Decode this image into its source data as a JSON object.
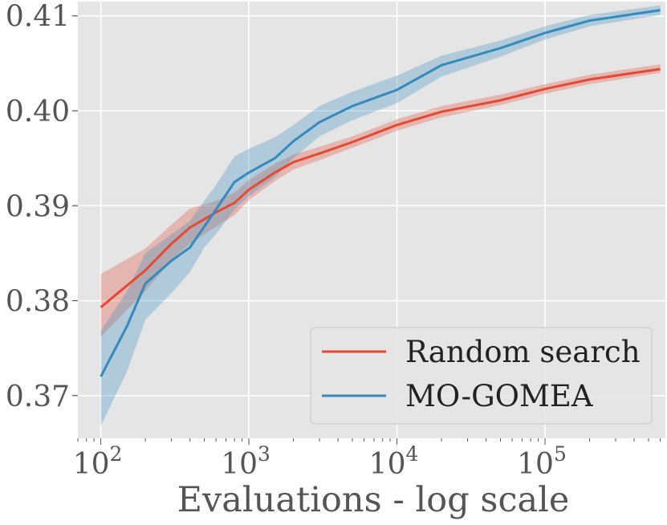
{
  "chart_data": {
    "type": "line",
    "title": "",
    "xlabel": "Evaluations - log scale",
    "ylabel": "",
    "x_scale": "log",
    "xlim": [
      70,
      650000
    ],
    "ylim": [
      0.3655,
      0.4115
    ],
    "grid": true,
    "background": "#e5e5e5",
    "grid_color": "#ffffff",
    "legend_position": "lower-right",
    "x_ticks": [
      {
        "value": 100,
        "base": "10",
        "exp": "2"
      },
      {
        "value": 1000,
        "base": "10",
        "exp": "3"
      },
      {
        "value": 10000,
        "base": "10",
        "exp": "4"
      },
      {
        "value": 100000,
        "base": "10",
        "exp": "5"
      }
    ],
    "y_ticks": [
      {
        "value": 0.37,
        "label": "0.37"
      },
      {
        "value": 0.38,
        "label": "0.38"
      },
      {
        "value": 0.39,
        "label": "0.39"
      },
      {
        "value": 0.4,
        "label": "0.40"
      },
      {
        "value": 0.41,
        "label": "0.41"
      }
    ],
    "series": [
      {
        "name": "Random search",
        "color": "#e24a33",
        "x": [
          100,
          200,
          300,
          400,
          600,
          800,
          1000,
          1500,
          2000,
          3000,
          5000,
          10000,
          20000,
          50000,
          100000,
          200000,
          600000
        ],
        "y": [
          0.3793,
          0.3832,
          0.386,
          0.3877,
          0.3893,
          0.3903,
          0.3917,
          0.3935,
          0.3946,
          0.3955,
          0.3967,
          0.3985,
          0.3999,
          0.4011,
          0.4023,
          0.4033,
          0.4044
        ],
        "lower": [
          0.3762,
          0.381,
          0.3843,
          0.386,
          0.3878,
          0.389,
          0.3906,
          0.3926,
          0.3938,
          0.3948,
          0.3961,
          0.3979,
          0.3993,
          0.4006,
          0.4018,
          0.4028,
          0.404
        ],
        "upper": [
          0.3828,
          0.3855,
          0.388,
          0.3897,
          0.3905,
          0.3914,
          0.3927,
          0.3944,
          0.3954,
          0.3962,
          0.3973,
          0.3991,
          0.4005,
          0.4017,
          0.4028,
          0.4038,
          0.4049
        ]
      },
      {
        "name": "MO-GOMEA",
        "color": "#348abd",
        "x": [
          100,
          150,
          200,
          300,
          400,
          500,
          600,
          800,
          1000,
          1500,
          2000,
          3000,
          5000,
          10000,
          20000,
          50000,
          100000,
          200000,
          600000
        ],
        "y": [
          0.372,
          0.3773,
          0.3818,
          0.3842,
          0.3856,
          0.3878,
          0.3896,
          0.3925,
          0.3935,
          0.395,
          0.3968,
          0.3988,
          0.4005,
          0.4022,
          0.4048,
          0.4066,
          0.4082,
          0.4095,
          0.4106
        ],
        "lower": [
          0.3668,
          0.3725,
          0.378,
          0.3808,
          0.383,
          0.3856,
          0.387,
          0.3896,
          0.391,
          0.393,
          0.395,
          0.3973,
          0.399,
          0.4008,
          0.4036,
          0.4057,
          0.4075,
          0.4089,
          0.4101
        ],
        "upper": [
          0.3768,
          0.381,
          0.385,
          0.387,
          0.3884,
          0.3905,
          0.3922,
          0.3952,
          0.396,
          0.3972,
          0.3985,
          0.4005,
          0.402,
          0.4037,
          0.4058,
          0.4074,
          0.4089,
          0.4101,
          0.4111
        ]
      }
    ]
  }
}
